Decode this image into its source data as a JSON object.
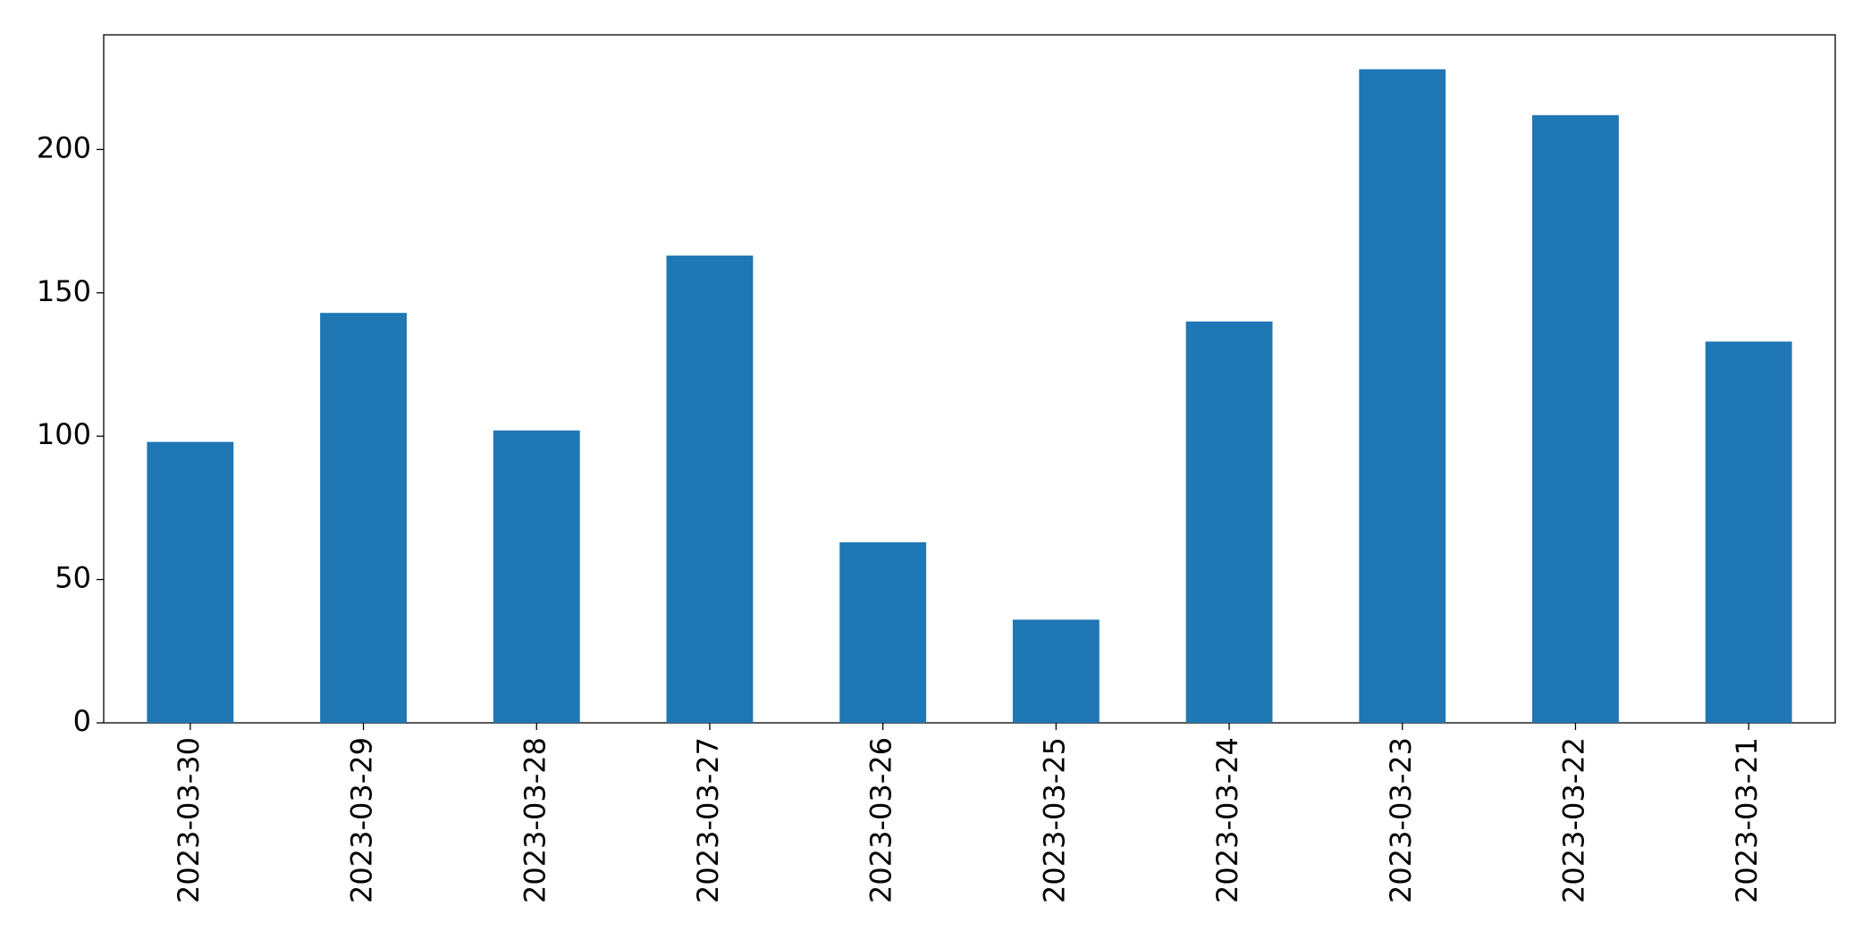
{
  "chart_data": {
    "type": "bar",
    "categories": [
      "2023-03-30",
      "2023-03-29",
      "2023-03-28",
      "2023-03-27",
      "2023-03-26",
      "2023-03-25",
      "2023-03-24",
      "2023-03-23",
      "2023-03-22",
      "2023-03-21"
    ],
    "values": [
      98,
      143,
      102,
      163,
      63,
      36,
      140,
      228,
      212,
      133
    ],
    "color": "#1f77b4",
    "ylim": [
      0,
      240
    ],
    "yticks": [
      0,
      50,
      100,
      150,
      200
    ],
    "grid": false
  }
}
